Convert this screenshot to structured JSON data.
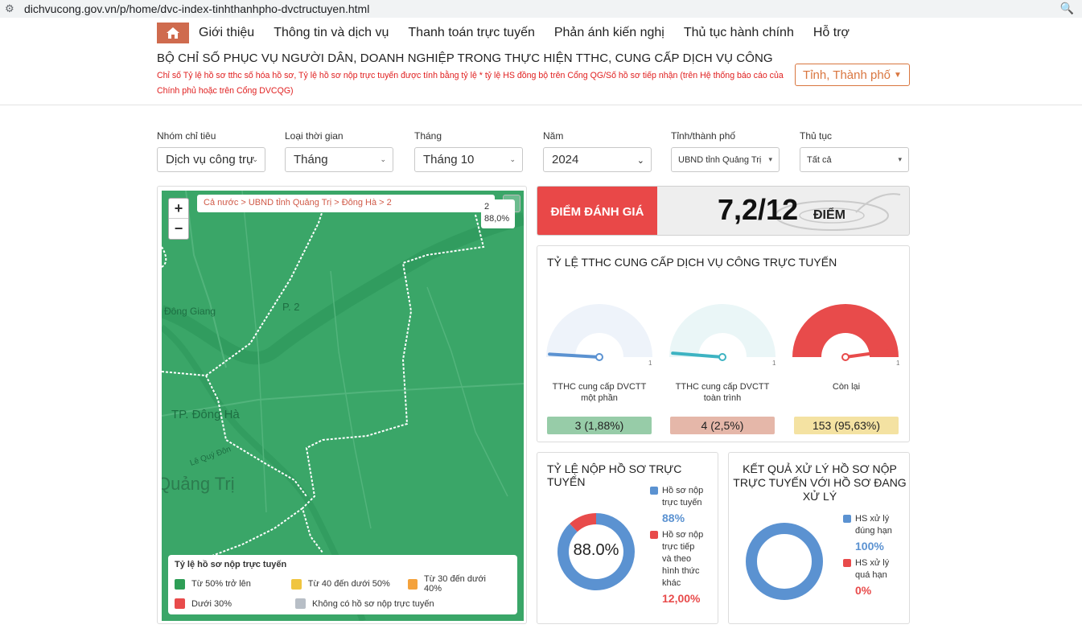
{
  "browser": {
    "url": "dichvucong.gov.vn/p/home/dvc-index-tinhthanhpho-dvctructuyen.html"
  },
  "nav": {
    "items": [
      "Giới thiệu",
      "Thông tin và dịch vụ",
      "Thanh toán trực tuyến",
      "Phản ánh kiến nghị",
      "Thủ tục hành chính",
      "Hỗ trợ"
    ]
  },
  "header": {
    "title": "BỘ CHỈ SỐ PHỤC VỤ NGƯỜI DÂN, DOANH NGHIỆP TRONG THỰC HIỆN TTHC, CUNG CẤP DỊCH VỤ CÔNG",
    "note": "Chỉ số Tỷ lệ hồ sơ tthc số hóa hồ sơ, Tỷ lệ hồ sơ nộp trực tuyến được tính bằng tỷ lệ * tỷ lệ HS đồng bộ trên Cổng QG/Số hồ sơ tiếp nhận (trên Hệ thống báo cáo của Chính phủ hoặc trên Cổng DVCQG)",
    "province_button": "Tỉnh, Thành phố"
  },
  "filters": [
    {
      "label": "Nhóm chỉ tiêu",
      "value": "Dịch vụ công trự"
    },
    {
      "label": "Loại thời gian",
      "value": "Tháng"
    },
    {
      "label": "Tháng",
      "value": "Tháng 10"
    },
    {
      "label": "Năm",
      "value": "2024"
    },
    {
      "label": "Tỉnh/thành phố",
      "value": "UBND tỉnh Quảng Trị"
    },
    {
      "label": "Thủ tục",
      "value": "Tất cả"
    }
  ],
  "map": {
    "breadcrumb": "Cả nước > UBND tỉnh Quảng Trị > Đông Hà > 2",
    "tooltip_id": "2",
    "tooltip_value": "88,0%",
    "labels": {
      "dong_giang": "Đông Giang",
      "p2": "P. 2",
      "tp_dong_ha": "TP. Đông Hà",
      "quang_tri": "Quảng Trị",
      "le_quy_don": "Lê Quý Đôn"
    },
    "legend": {
      "title": "Tỷ lệ hồ sơ nộp trực tuyến",
      "items": [
        {
          "label": "Từ 50% trở lên",
          "color": "#2e9e56"
        },
        {
          "label": "Từ 40 đến dưới 50%",
          "color": "#f0c540"
        },
        {
          "label": "Từ 30 đến dưới 40%",
          "color": "#f4a23c"
        },
        {
          "label": "Dưới 30%",
          "color": "#e84b4b"
        },
        {
          "label": "Không có hồ sơ nộp trực tuyến",
          "color": "#b7bec6"
        }
      ]
    }
  },
  "score": {
    "label": "ĐIỂM ĐÁNH GIÁ",
    "value": "7,2/12",
    "unit": "ĐIỂM"
  },
  "tthc_panel": {
    "title": "TỶ LỆ TTHC CUNG CẤP DỊCH VỤ CÔNG TRỰC TUYẾN",
    "gauges": [
      {
        "caption_line1": "TTHC cung cấp DVCTT",
        "caption_line2": "một phần",
        "value": "3 (1,88%)",
        "fraction": 0.0188,
        "color": "#5b92d1",
        "bg": "#eef3fa",
        "badge": "#97cca8",
        "scale_max": "1"
      },
      {
        "caption_line1": "TTHC cung cấp DVCTT",
        "caption_line2": "toàn trình",
        "value": "4 (2,5%)",
        "fraction": 0.025,
        "color": "#3db3c2",
        "bg": "#eaf6f7",
        "badge": "#e5b7a9",
        "scale_max": "1"
      },
      {
        "caption_line1": "Còn lại",
        "caption_line2": "",
        "value": "153 (95,63%)",
        "fraction": 0.9563,
        "color": "#e84b4b",
        "bg": "#e84b4b",
        "badge": "#f4e2a2",
        "scale_max": "1"
      }
    ]
  },
  "online_panel": {
    "title": "TỶ LỆ NỘP HỒ SƠ TRỰC TUYẾN",
    "center": "88.0%",
    "fraction_online": 0.88,
    "legend": [
      {
        "line1": "Hồ sơ nộp",
        "line2": "trực tuyến",
        "line3": "",
        "line4": "",
        "line5": "",
        "pct": "88%",
        "color": "#5b92d1"
      },
      {
        "line1": "Hồ sơ nộp",
        "line2": "trực tiếp",
        "line3": "và theo",
        "line4": "hình thức",
        "line5": "khác",
        "pct": "12,00%",
        "color": "#e84b4b"
      }
    ]
  },
  "result_panel": {
    "title_line1": "KẾT QUẢ XỬ LÝ HỒ SƠ NỘP",
    "title_line2": "TRỰC TUYẾN VỚI HỒ SƠ ĐANG",
    "title_line3": "XỬ LÝ",
    "fraction_on_time": 1.0,
    "legend": [
      {
        "line1": "HS xử lý",
        "line2": "đúng hạn",
        "pct": "100%",
        "color": "#5b92d1"
      },
      {
        "line1": "HS xử lý",
        "line2": "quá hạn",
        "pct": "0%",
        "color": "#e84b4b"
      }
    ]
  }
}
